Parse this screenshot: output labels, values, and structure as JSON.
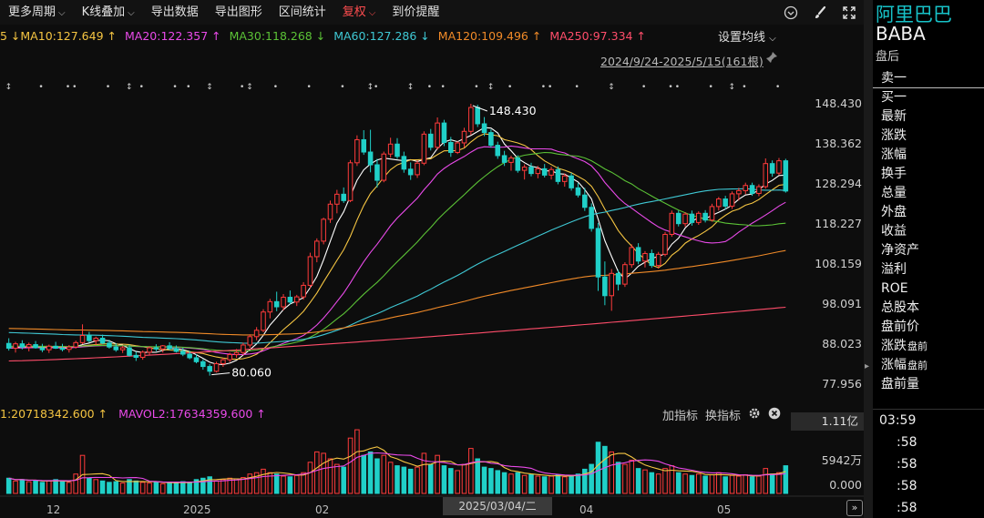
{
  "toolbar": {
    "items": [
      {
        "label": "更多周期",
        "caret": true,
        "active": false
      },
      {
        "label": "K线叠加",
        "caret": true,
        "active": false
      },
      {
        "label": "导出数据",
        "caret": false,
        "active": false
      },
      {
        "label": "导出图形",
        "caret": false,
        "active": false
      },
      {
        "label": "区间统计",
        "caret": false,
        "active": false
      },
      {
        "label": "复权",
        "caret": true,
        "active": true
      },
      {
        "label": "到价提醒",
        "caret": false,
        "active": false
      }
    ],
    "right_icons": [
      "chevron-down-circle-icon",
      "brush-icon",
      "expand-icon"
    ]
  },
  "ma_row": {
    "items": [
      {
        "text": "5 ↓MA10:127.649 ↑",
        "color": "#f5c542"
      },
      {
        "text": "MA20:122.357 ↑",
        "color": "#e94ae9"
      },
      {
        "text": "MA30:118.268 ↓",
        "color": "#5bc236"
      },
      {
        "text": "MA60:127.286 ↓",
        "color": "#3fc8d4"
      },
      {
        "text": "MA120:109.496 ↑",
        "color": "#f08a28"
      },
      {
        "text": "MA250:97.334 ↑",
        "color": "#ff4d6a"
      }
    ],
    "setting_label": "设置均线",
    "date_range": "2024/9/24-2025/5/15(161根)"
  },
  "price_axis": [
    "148.430",
    "138.362",
    "128.294",
    "118.227",
    "108.159",
    "98.091",
    "88.023",
    "77.956"
  ],
  "annotations": {
    "high": "148.430",
    "low": "80.060"
  },
  "volume": {
    "header_items": [
      {
        "text": "1:20718342.600 ↑",
        "color": "#f5c542"
      },
      {
        "text": "MAVOL2:17634359.600 ↑",
        "color": "#e94ae9"
      }
    ],
    "tool_add": "加指标",
    "tool_switch": "换指标",
    "value_box": "1.11亿",
    "axis": [
      "5942万",
      "0.000"
    ]
  },
  "x_axis": {
    "ticks": [
      "12",
      "2025",
      "02",
      "04",
      "05"
    ],
    "cursor_date": "2025/03/04/二",
    "next_label": "»"
  },
  "side": {
    "name": "阿里巴巴",
    "code": "BABA",
    "status": "盘后",
    "items": [
      {
        "label": "卖一",
        "tag": ""
      },
      {
        "label": "买一",
        "tag": ""
      },
      {
        "label": "最新",
        "tag": ""
      },
      {
        "label": "涨跌",
        "tag": ""
      },
      {
        "label": "涨幅",
        "tag": ""
      },
      {
        "label": "换手",
        "tag": ""
      },
      {
        "label": "总量",
        "tag": ""
      },
      {
        "label": "外盘",
        "tag": ""
      },
      {
        "label": "收益",
        "tag": ""
      },
      {
        "label": "净资产",
        "tag": ""
      },
      {
        "label": "溢利",
        "tag": ""
      },
      {
        "label": "ROE",
        "tag": ""
      },
      {
        "label": "总股本",
        "tag": ""
      },
      {
        "label": "盘前价",
        "tag": ""
      },
      {
        "label": "涨跌",
        "tag": "盘前"
      },
      {
        "label": "涨幅",
        "tag": "盘前"
      },
      {
        "label": "盘前量",
        "tag": ""
      }
    ],
    "times": [
      "03:59",
      ":58",
      ":58",
      ":58",
      ":58"
    ]
  },
  "colors": {
    "up": "#ff3b3b",
    "down": "#20d0c8",
    "accent_cyan": "#17c2c8",
    "active_red": "#ff4d4f"
  },
  "chart_data": {
    "type": "candlestick",
    "ylim": [
      77.956,
      148.43
    ],
    "candles": [
      [
        88.2,
        89.5,
        86.4,
        87.0
      ],
      [
        87.0,
        88.6,
        85.9,
        88.1
      ],
      [
        88.1,
        89.0,
        86.7,
        87.3
      ],
      [
        87.3,
        88.4,
        86.2,
        87.9
      ],
      [
        87.9,
        88.8,
        86.9,
        87.1
      ],
      [
        87.1,
        88.1,
        86.0,
        86.6
      ],
      [
        86.6,
        87.9,
        85.8,
        87.5
      ],
      [
        87.5,
        88.6,
        86.8,
        87.0
      ],
      [
        87.0,
        88.1,
        86.2,
        86.7
      ],
      [
        86.7,
        87.8,
        85.9,
        87.3
      ],
      [
        87.3,
        88.9,
        86.9,
        88.4
      ],
      [
        88.4,
        93.0,
        88.0,
        90.2
      ],
      [
        90.2,
        91.1,
        88.4,
        88.9
      ],
      [
        88.9,
        89.9,
        87.8,
        89.5
      ],
      [
        89.5,
        90.4,
        88.0,
        88.3
      ],
      [
        88.3,
        89.1,
        86.9,
        87.3
      ],
      [
        87.3,
        88.2,
        86.1,
        86.6
      ],
      [
        86.6,
        87.6,
        85.8,
        87.1
      ],
      [
        87.1,
        87.9,
        84.9,
        85.2
      ],
      [
        85.2,
        86.1,
        83.8,
        84.7
      ],
      [
        84.7,
        86.4,
        84.1,
        86.0
      ],
      [
        86.0,
        87.5,
        85.4,
        87.1
      ],
      [
        87.1,
        88.0,
        86.2,
        86.8
      ],
      [
        86.8,
        87.8,
        85.9,
        87.6
      ],
      [
        87.6,
        88.5,
        86.5,
        86.9
      ],
      [
        86.9,
        87.7,
        85.9,
        86.2
      ],
      [
        86.2,
        87.1,
        85.0,
        85.5
      ],
      [
        85.5,
        86.3,
        84.2,
        84.6
      ],
      [
        84.6,
        85.5,
        83.2,
        83.6
      ],
      [
        83.6,
        84.2,
        81.6,
        82.4
      ],
      [
        82.4,
        83.0,
        80.1,
        81.2
      ],
      [
        81.2,
        83.6,
        80.9,
        83.1
      ],
      [
        83.1,
        84.6,
        82.3,
        84.1
      ],
      [
        84.1,
        85.9,
        83.5,
        85.4
      ],
      [
        85.4,
        86.8,
        84.6,
        85.9
      ],
      [
        85.9,
        88.4,
        85.2,
        87.8
      ],
      [
        87.8,
        90.5,
        87.1,
        89.9
      ],
      [
        89.9,
        92.3,
        89.0,
        91.5
      ],
      [
        91.5,
        96.8,
        91.0,
        96.1
      ],
      [
        96.1,
        99.4,
        94.5,
        98.7
      ],
      [
        98.7,
        101.2,
        96.3,
        97.4
      ],
      [
        97.4,
        100.6,
        96.5,
        99.8
      ],
      [
        99.8,
        101.5,
        98.0,
        98.6
      ],
      [
        98.6,
        100.4,
        97.6,
        99.9
      ],
      [
        99.9,
        103.6,
        99.2,
        102.8
      ],
      [
        102.8,
        111.0,
        102.1,
        110.0
      ],
      [
        110.0,
        114.6,
        108.6,
        113.9
      ],
      [
        113.9,
        119.8,
        113.1,
        119.4
      ],
      [
        119.4,
        124.1,
        118.5,
        123.2
      ],
      [
        123.2,
        126.8,
        120.9,
        125.7
      ],
      [
        125.7,
        127.4,
        123.5,
        124.1
      ],
      [
        124.1,
        134.3,
        123.7,
        133.6
      ],
      [
        133.6,
        140.5,
        132.8,
        139.4
      ],
      [
        139.4,
        141.8,
        135.6,
        136.3
      ],
      [
        136.3,
        141.9,
        131.2,
        133.1
      ],
      [
        133.1,
        134.6,
        127.4,
        129.2
      ],
      [
        129.2,
        136.4,
        128.7,
        135.8
      ],
      [
        135.8,
        139.9,
        134.9,
        138.3
      ],
      [
        138.3,
        139.8,
        134.6,
        135.2
      ],
      [
        135.2,
        136.4,
        131.1,
        132.0
      ],
      [
        132.0,
        133.7,
        129.3,
        130.6
      ],
      [
        130.6,
        134.2,
        129.8,
        133.5
      ],
      [
        133.5,
        141.5,
        133.0,
        140.8
      ],
      [
        140.8,
        142.1,
        136.7,
        137.5
      ],
      [
        137.5,
        145.0,
        136.9,
        143.6
      ],
      [
        143.6,
        144.4,
        137.8,
        138.7
      ],
      [
        138.7,
        140.1,
        135.1,
        136.2
      ],
      [
        136.2,
        139.0,
        135.8,
        138.6
      ],
      [
        138.6,
        142.4,
        137.4,
        141.5
      ],
      [
        141.5,
        148.43,
        140.6,
        147.5
      ],
      [
        147.5,
        148.2,
        142.6,
        143.4
      ],
      [
        143.4,
        145.1,
        140.3,
        141.2
      ],
      [
        141.2,
        142.0,
        137.4,
        138.0
      ],
      [
        138.0,
        138.9,
        134.6,
        135.4
      ],
      [
        135.4,
        136.6,
        132.8,
        133.7
      ],
      [
        133.7,
        135.4,
        131.6,
        134.8
      ],
      [
        134.8,
        135.5,
        131.1,
        131.7
      ],
      [
        131.7,
        133.2,
        129.4,
        132.5
      ],
      [
        132.5,
        133.6,
        130.2,
        130.9
      ],
      [
        130.9,
        132.8,
        129.7,
        132.1
      ],
      [
        132.1,
        133.3,
        129.9,
        130.5
      ],
      [
        130.5,
        132.6,
        129.4,
        131.9
      ],
      [
        131.9,
        132.7,
        128.2,
        128.9
      ],
      [
        128.9,
        130.9,
        127.6,
        130.3
      ],
      [
        130.3,
        131.1,
        126.6,
        127.3
      ],
      [
        127.3,
        128.5,
        124.9,
        125.5
      ],
      [
        125.5,
        127.3,
        121.5,
        122.4
      ],
      [
        122.4,
        123.4,
        116.3,
        117.1
      ],
      [
        117.1,
        118.5,
        101.4,
        104.9
      ],
      [
        104.9,
        108.8,
        97.8,
        100.2
      ],
      [
        100.2,
        106.9,
        96.4,
        105.8
      ],
      [
        105.8,
        106.7,
        101.5,
        103.1
      ],
      [
        103.1,
        108.6,
        102.4,
        108.0
      ],
      [
        108.0,
        113.1,
        107.2,
        112.3
      ],
      [
        112.3,
        113.4,
        108.1,
        108.9
      ],
      [
        108.9,
        111.4,
        107.3,
        110.8
      ],
      [
        110.8,
        111.8,
        107.2,
        107.8
      ],
      [
        107.8,
        111.2,
        107.0,
        110.6
      ],
      [
        110.6,
        116.2,
        110.1,
        115.6
      ],
      [
        115.6,
        121.6,
        115.0,
        120.9
      ],
      [
        120.9,
        121.6,
        117.6,
        118.3
      ],
      [
        118.3,
        121.2,
        117.5,
        120.7
      ],
      [
        120.7,
        121.6,
        117.8,
        118.6
      ],
      [
        118.6,
        121.4,
        118.0,
        120.9
      ],
      [
        120.9,
        121.7,
        118.6,
        119.2
      ],
      [
        119.2,
        123.3,
        118.8,
        122.6
      ],
      [
        122.6,
        125.0,
        121.6,
        124.5
      ],
      [
        124.5,
        125.3,
        121.9,
        122.7
      ],
      [
        122.7,
        126.4,
        122.0,
        125.8
      ],
      [
        125.8,
        127.3,
        124.1,
        126.6
      ],
      [
        126.6,
        128.6,
        125.7,
        127.9
      ],
      [
        127.9,
        128.6,
        125.3,
        125.9
      ],
      [
        125.9,
        128.2,
        125.2,
        127.6
      ],
      [
        127.6,
        134.7,
        127.1,
        133.4
      ],
      [
        133.4,
        134.2,
        130.1,
        131.0
      ],
      [
        131.0,
        134.8,
        130.5,
        134.1
      ],
      [
        134.1,
        134.6,
        126.1,
        126.5
      ]
    ],
    "volume_ratios": [
      0.22,
      0.18,
      0.2,
      0.17,
      0.19,
      0.16,
      0.18,
      0.2,
      0.17,
      0.16,
      0.28,
      0.55,
      0.22,
      0.2,
      0.18,
      0.16,
      0.17,
      0.15,
      0.2,
      0.18,
      0.16,
      0.15,
      0.17,
      0.14,
      0.16,
      0.15,
      0.17,
      0.16,
      0.2,
      0.22,
      0.24,
      0.18,
      0.2,
      0.22,
      0.21,
      0.23,
      0.28,
      0.3,
      0.35,
      0.3,
      0.28,
      0.25,
      0.24,
      0.26,
      0.3,
      0.45,
      0.6,
      0.58,
      0.5,
      0.42,
      0.38,
      0.8,
      0.92,
      0.55,
      0.6,
      0.5,
      0.55,
      0.45,
      0.4,
      0.38,
      0.35,
      0.38,
      0.58,
      0.42,
      0.55,
      0.4,
      0.36,
      0.33,
      0.42,
      0.65,
      0.5,
      0.38,
      0.36,
      0.33,
      0.3,
      0.28,
      0.3,
      0.26,
      0.27,
      0.25,
      0.24,
      0.25,
      0.27,
      0.24,
      0.26,
      0.28,
      0.35,
      0.42,
      0.74,
      0.68,
      0.6,
      0.45,
      0.42,
      0.48,
      0.36,
      0.34,
      0.3,
      0.28,
      0.36,
      0.4,
      0.3,
      0.28,
      0.26,
      0.28,
      0.25,
      0.27,
      0.3,
      0.24,
      0.26,
      0.25,
      0.27,
      0.24,
      0.25,
      0.36,
      0.28,
      0.3,
      0.4
    ]
  }
}
